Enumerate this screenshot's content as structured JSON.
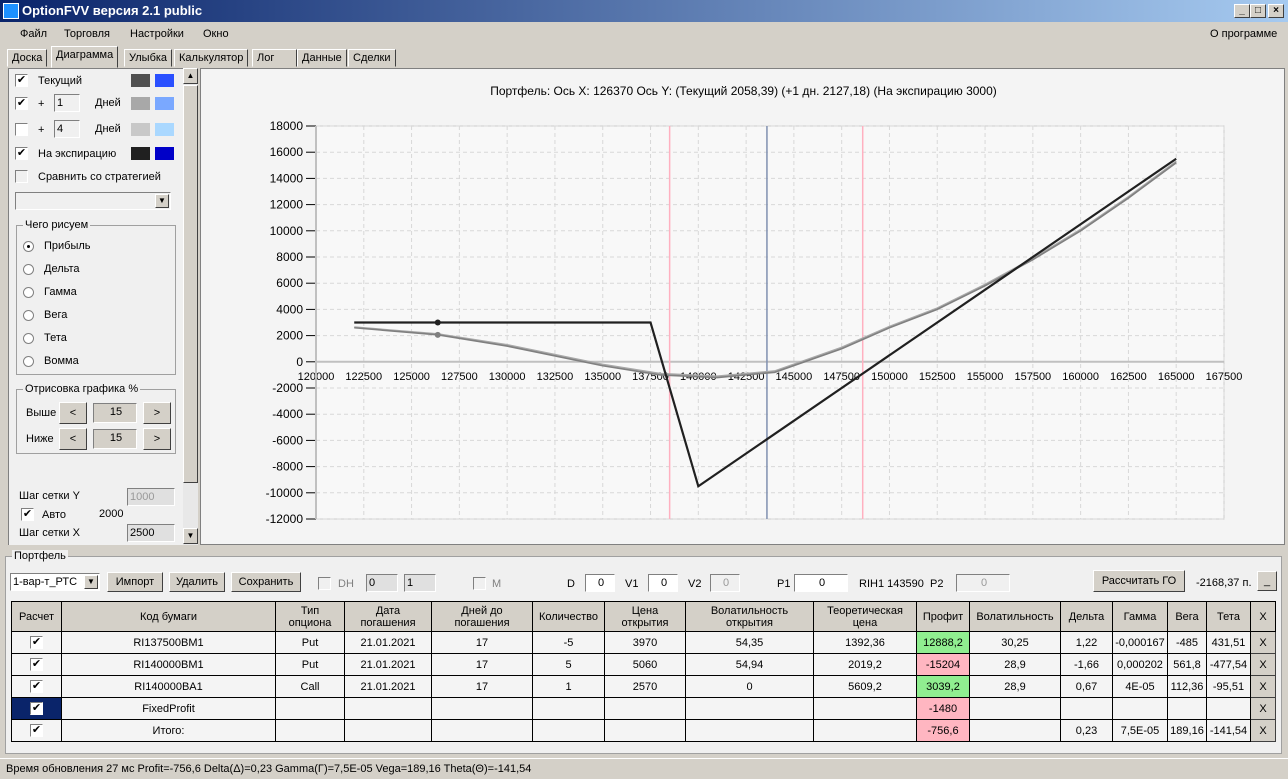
{
  "window": {
    "title": "OptionFVV версия 2.1 public"
  },
  "menu": [
    "Файл",
    "Торговля",
    "Настройки",
    "Окно"
  ],
  "menu_right": "О программе",
  "tabs": [
    "Доска",
    "Диаграмма",
    "Улыбка",
    "Калькулятор",
    "Лог",
    "Данные",
    "Сделки"
  ],
  "active_tab": "Диаграмма",
  "left": {
    "current": {
      "label": "Текущий",
      "checked": true,
      "colors": [
        "#505050",
        "#2a50ff"
      ]
    },
    "plus1": {
      "plus": "+",
      "value": "1",
      "unit": "Дней",
      "checked": true,
      "colors": [
        "#a8a8a8",
        "#7aa8ff"
      ]
    },
    "plus4": {
      "plus": "+",
      "value": "4",
      "unit": "Дней",
      "checked": false,
      "colors": [
        "#c8c8c8",
        "#aad8ff"
      ]
    },
    "expiration": {
      "label": "На экспирацию",
      "checked": true,
      "colors": [
        "#202020",
        "#0000c8"
      ]
    },
    "compare": {
      "label": "Сравнить со стратегией",
      "checked": false
    },
    "draw_group": {
      "title": "Чего рисуем",
      "options": [
        "Прибыль",
        "Дельта",
        "Гамма",
        "Вега",
        "Тета",
        "Вомма"
      ],
      "selected": "Прибыль"
    },
    "render_group": {
      "title": "Отрисовка графика %",
      "above_label": "Выше",
      "above": "15",
      "below_label": "Ниже",
      "below": "15",
      "dec": "<",
      "inc": ">"
    },
    "grid_y_label": "Шаг сетки Y",
    "grid_y": "1000",
    "auto_label": "Авто",
    "auto_checked": true,
    "auto_value": "2000",
    "grid_x_label": "Шаг сетки X",
    "grid_x": "2500"
  },
  "chart_data": {
    "type": "line",
    "title": "Портфель: Ось X: 126370 Ось Y:  (Текущий 2058,39)  (+1 дн. 2127,18)  (На экспирацию 3000)",
    "xlim": [
      120000,
      167500
    ],
    "ylim": [
      -12000,
      18000
    ],
    "xticks": [
      120000,
      122500,
      125000,
      127500,
      130000,
      132500,
      135000,
      137500,
      140000,
      142500,
      145000,
      147500,
      150000,
      152500,
      155000,
      157500,
      160000,
      162500,
      165000,
      167500
    ],
    "yticks": [
      18000,
      16000,
      14000,
      12000,
      10000,
      8000,
      6000,
      4000,
      2000,
      0,
      -2000,
      -4000,
      -6000,
      -8000,
      -10000,
      -12000
    ],
    "grid": true,
    "series": [
      {
        "key": "expiration",
        "color": "#202020",
        "x": [
          122000,
          137500,
          140000,
          165000
        ],
        "y": [
          3000,
          3000,
          -9500,
          15500
        ]
      },
      {
        "key": "current",
        "color": "#808080",
        "x": [
          122000,
          126370,
          130000,
          135000,
          138000,
          141000,
          144000,
          147500,
          150000,
          152500,
          155000,
          157500,
          160000,
          162500,
          165000
        ],
        "y": [
          2600,
          2058,
          1200,
          -300,
          -1000,
          -1200,
          -800,
          1000,
          2600,
          4000,
          5800,
          7800,
          10000,
          12500,
          15200
        ]
      },
      {
        "key": "plus1",
        "color": "#a8a8a8",
        "x": [
          122000,
          126370,
          130000,
          135000,
          138000,
          141000,
          144000,
          147500,
          150000,
          152500,
          155000,
          157500,
          160000,
          162500,
          165000
        ],
        "y": [
          2650,
          2127,
          1300,
          -200,
          -900,
          -1100,
          -700,
          1100,
          2700,
          4100,
          5900,
          7900,
          10100,
          12600,
          15300
        ]
      }
    ],
    "markers": [
      {
        "x": 126370,
        "y": 3000,
        "color": "#202020"
      },
      {
        "x": 126370,
        "y": 2058,
        "color": "#808080"
      }
    ],
    "vlines": [
      {
        "x": 138500,
        "color": "#ffb0c0"
      },
      {
        "x": 143590,
        "color": "#8090b0"
      },
      {
        "x": 148600,
        "color": "#ffb0c0"
      }
    ]
  },
  "portfolio": {
    "title": "Портфель",
    "selected": "1-вар-т_РТС",
    "import": "Импорт",
    "delete": "Удалить",
    "save": "Сохранить",
    "dh_label": "DH",
    "spin1": "0",
    "spin2": "1",
    "m_label": "M",
    "d_label": "D",
    "d": "0",
    "v1_label": "V1",
    "v1": "0",
    "v2_label": "V2",
    "v2": "0",
    "p1_label": "P1",
    "p1": "0",
    "ticker": "RIH1 143590",
    "p2_label": "P2",
    "p2": "0",
    "calc_go": "Рассчитать ГО",
    "go_value": "-2168,37 п.",
    "min_btn": "_",
    "headers": [
      "Расчет",
      "Код бумаги",
      "Тип опциона",
      "Дата погашения",
      "Дней до погашения",
      "Количество",
      "Цена открытия",
      "Волатильность открытия",
      "Теоретическая цена",
      "Профит",
      "Волатильность",
      "Дельта",
      "Гамма",
      "Вега",
      "Тета",
      "X"
    ],
    "rows": [
      [
        "RI137500BM1",
        "Put",
        "21.01.2021",
        "17",
        "-5",
        "3970",
        "54,35",
        "1392,36",
        "12888,2",
        "30,25",
        "1,22",
        "-0,000167",
        "-485",
        "431,51"
      ],
      [
        "RI140000BM1",
        "Put",
        "21.01.2021",
        "17",
        "5",
        "5060",
        "54,94",
        "2019,2",
        "-15204",
        "28,9",
        "-1,66",
        "0,000202",
        "561,8",
        "-477,54"
      ],
      [
        "RI140000BA1",
        "Call",
        "21.01.2021",
        "17",
        "1",
        "2570",
        "0",
        "5609,2",
        "3039,2",
        "28,9",
        "0,67",
        "4E-05",
        "112,36",
        "-95,51"
      ],
      [
        "FixedProfit",
        "",
        "",
        "",
        "",
        "",
        "",
        "",
        "-1480",
        "",
        "",
        "",
        "",
        ""
      ],
      [
        "Итого:",
        "",
        "",
        "",
        "",
        "",
        "",
        "",
        "-756,6",
        "",
        "0,23",
        "7,5E-05",
        "189,16",
        "-141,54"
      ]
    ],
    "close": "X"
  },
  "status": "Время обновления 27 мс  Profit=-756,6 Delta(Δ)=0,23 Gamma(Γ)=7,5E-05 Vega=189,16 Theta(Θ)=-141,54"
}
